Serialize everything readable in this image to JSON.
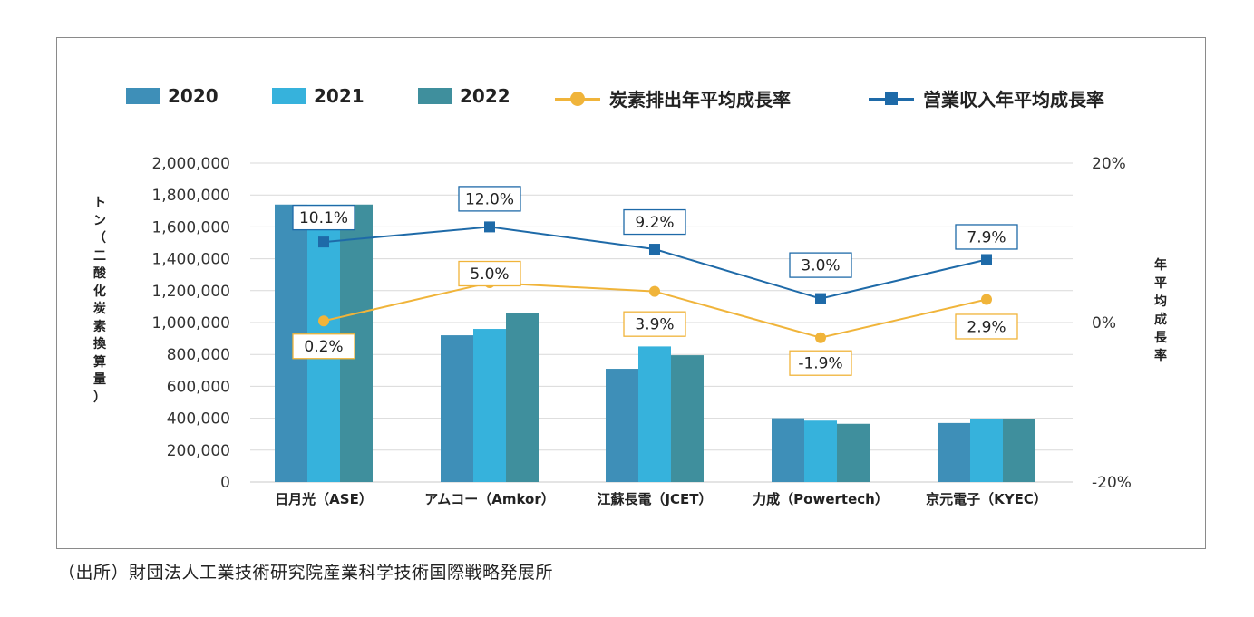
{
  "chart_data": {
    "type": "bar+line",
    "categories": [
      "日月光（ASE）",
      "アムコー（Amkor）",
      "江蘇長電（JCET）",
      "力成（Powertech）",
      "京元電子（KYEC）"
    ],
    "series": [
      {
        "name": "2020",
        "kind": "bar",
        "axis": "left",
        "color": "#3e8fb8",
        "values": [
          1740000,
          920000,
          710000,
          400000,
          370000
        ]
      },
      {
        "name": "2021",
        "kind": "bar",
        "axis": "left",
        "color": "#36b2dc",
        "values": [
          1740000,
          960000,
          850000,
          385000,
          395000
        ]
      },
      {
        "name": "2022",
        "kind": "bar",
        "axis": "left",
        "color": "#3f8f9d",
        "values": [
          1740000,
          1060000,
          795000,
          365000,
          395000
        ]
      },
      {
        "name": "炭素排出年平均成長率",
        "kind": "line",
        "axis": "right",
        "color": "#f0b43a",
        "marker": "circle",
        "values": [
          0.2,
          5.0,
          3.9,
          -1.9,
          2.9
        ],
        "labels": [
          "0.2%",
          "5.0%",
          "3.9%",
          "-1.9%",
          "2.9%"
        ]
      },
      {
        "name": "営業収入年平均成長率",
        "kind": "line",
        "axis": "right",
        "color": "#1e6aa8",
        "marker": "square",
        "values": [
          10.1,
          12.0,
          9.2,
          3.0,
          7.9
        ],
        "labels": [
          "10.1%",
          "12.0%",
          "9.2%",
          "3.0%",
          "7.9%"
        ]
      }
    ],
    "y_left": {
      "label": "トン（二酸化炭素換算量）",
      "min": 0,
      "max": 2000000,
      "ticks": [
        "0",
        "200,000",
        "400,000",
        "600,000",
        "800,000",
        "1,000,000",
        "1,200,000",
        "1,400,000",
        "1,600,000",
        "1,800,000",
        "2,000,000"
      ]
    },
    "y_right": {
      "label": "年平均成長率",
      "min": -20,
      "max": 20,
      "ticks": [
        {
          "value": 20,
          "label": "20%"
        },
        {
          "value": 0,
          "label": "0%"
        },
        {
          "value": -20,
          "label": "-20%"
        }
      ]
    },
    "grid": true,
    "legend_position": "top"
  },
  "source_note": "（出所）財団法人工業技術研究院産業科学技術国際戦略発展所"
}
